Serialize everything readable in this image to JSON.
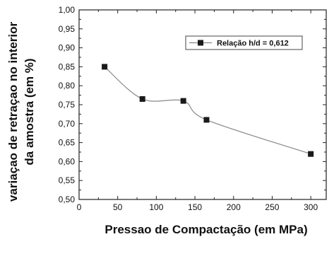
{
  "chart_data": {
    "type": "scatter",
    "xlabel": "Pressao de Compactação (em MPa)",
    "ylabel_line1": "variaçao de retraçao no interior",
    "ylabel_line2": "da amostra (em %)",
    "xlim": [
      0,
      320
    ],
    "ylim": [
      0.5,
      1.0
    ],
    "x_ticks": [
      0,
      50,
      100,
      150,
      200,
      250,
      300
    ],
    "y_ticks": [
      0.5,
      0.55,
      0.6,
      0.65,
      0.7,
      0.75,
      0.8,
      0.85,
      0.9,
      0.95,
      1.0
    ],
    "x_tick_labels": [
      "0",
      "50",
      "100",
      "150",
      "200",
      "250",
      "300"
    ],
    "y_tick_labels": [
      "0,50",
      "0,55",
      "0,60",
      "0,65",
      "0,70",
      "0,75",
      "0,80",
      "0,85",
      "0,90",
      "0,95",
      "1,00"
    ],
    "legend_position": "top-right",
    "grid": false,
    "series": [
      {
        "name": "Relação h/d = 0,612",
        "marker": "square",
        "color": "#1a1a1a",
        "points": [
          {
            "x": 33,
            "y": 0.85
          },
          {
            "x": 82,
            "y": 0.765
          },
          {
            "x": 135,
            "y": 0.76
          },
          {
            "x": 165,
            "y": 0.71
          },
          {
            "x": 300,
            "y": 0.62
          }
        ]
      }
    ]
  }
}
